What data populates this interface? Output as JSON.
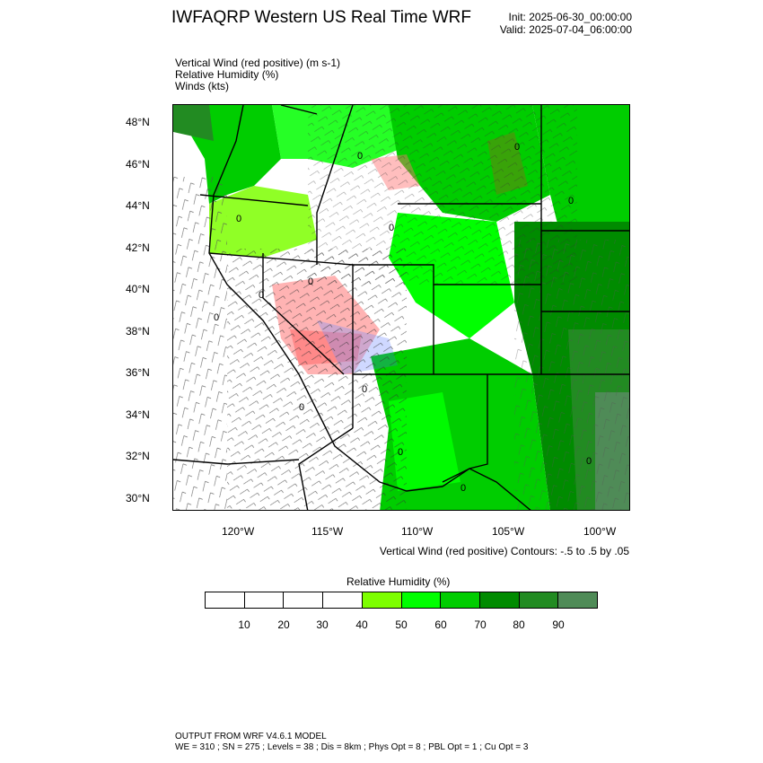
{
  "header": {
    "title": "IWFAQRP Western US Real Time WRF",
    "init": "Init: 2025-06-30_00:00:00",
    "valid": "Valid: 2025-07-04_06:00:00"
  },
  "variables": {
    "line1": "Vertical Wind (red positive)   (m s-1)",
    "line2": "Relative Humidity   (%)",
    "line3": "Winds   (kts)"
  },
  "map": {
    "lat_labels": [
      "48°N",
      "46°N",
      "44°N",
      "42°N",
      "40°N",
      "38°N",
      "36°N",
      "34°N",
      "32°N",
      "30°N"
    ],
    "lon_labels": [
      "120°W",
      "115°W",
      "110°W",
      "105°W",
      "100°W"
    ],
    "contours_note": "Vertical Wind (red positive) Contours: -.5 to .5 by .05",
    "contour_zero_label": "0"
  },
  "colorbar": {
    "title": "Relative Humidity   (%)",
    "labels": [
      "10",
      "20",
      "30",
      "40",
      "50",
      "60",
      "70",
      "80",
      "90"
    ],
    "colors": [
      "#ffffff",
      "#ffffff",
      "#ffffff",
      "#ffffff",
      "#7dff00",
      "#00ff00",
      "#00cd00",
      "#008b00",
      "#228b22",
      "#4f8b57"
    ]
  },
  "footer": {
    "line1": "OUTPUT FROM WRF V4.6.1 MODEL",
    "line2": "WE = 310 ; SN = 275 ; Levels = 38 ; Dis = 8km ; Phys Opt = 8 ; PBL Opt = 1 ; Cu Opt = 3"
  }
}
